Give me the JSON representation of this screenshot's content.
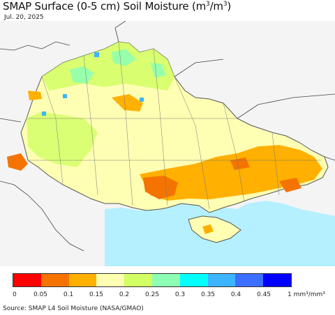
{
  "title": {
    "main": "SMAP Surface (0-5 cm) Soil Moisture (m",
    "sup1": "3",
    "mid": "/m",
    "sup2": "3",
    "end": ")"
  },
  "date": "Jul. 20, 2025",
  "legend": {
    "colors": [
      "#ff0000",
      "#f57300",
      "#ffb000",
      "#ffffb4",
      "#d2ff64",
      "#8cffb4",
      "#00ffff",
      "#3cb4ff",
      "#3c6eff",
      "#0000ff"
    ],
    "labels": [
      "0",
      "0.05",
      "0.1",
      "0.15",
      "0.2",
      "0.25",
      "0.3",
      "0.35",
      "0.4",
      "0.45"
    ],
    "unit_label": "1 mm³/mm³"
  },
  "source": "Source: SMAP L4 Soil Moisture (NASA/GMAO)",
  "map": {
    "sea_color": "#b4f0ff",
    "land_outside_color": "#f4f4f4",
    "border_color": "#555555",
    "region_colors": {
      "dry": "#ffb000",
      "very_dry": "#f57300",
      "medium": "#ffffb4",
      "moist": "#d2ff64",
      "wet": "#8cffb4",
      "very_wet": "#3cb4ff"
    }
  }
}
